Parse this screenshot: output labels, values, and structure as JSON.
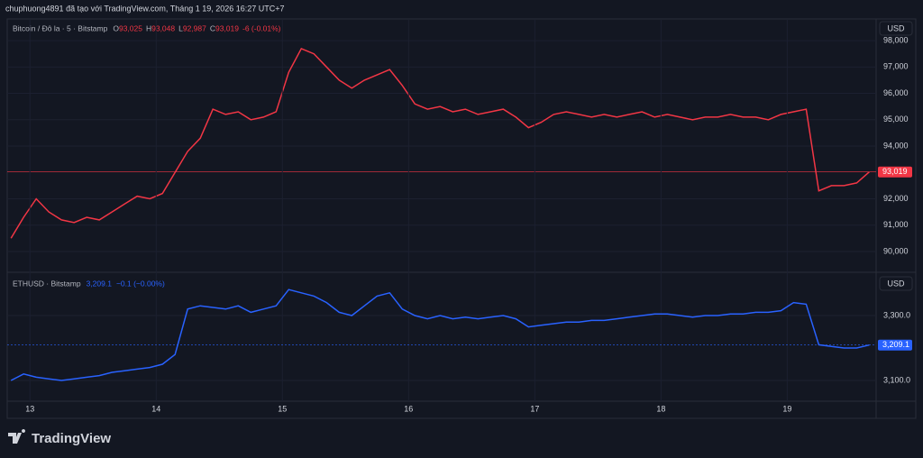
{
  "header": "chuphuong4891 đã tạo với TradingView.com, Tháng 1 19, 2026 16:27 UTC+7",
  "brand": "TradingView",
  "chart_data": [
    {
      "type": "line",
      "title": "Bitcoin / Đô la · 5 · Bitstamp",
      "currency": "USD",
      "ohlc": [
        {
          "label": "O",
          "value": "93,025"
        },
        {
          "label": "H",
          "value": "93,048"
        },
        {
          "label": "L",
          "value": "92,987"
        },
        {
          "label": "C",
          "value": "93,019"
        }
      ],
      "change": "-6 (-0.01%)",
      "last_label": "93,019",
      "price_line_color": "#f23645",
      "x": [
        12.85,
        12.95,
        13.05,
        13.15,
        13.25,
        13.35,
        13.45,
        13.55,
        13.65,
        13.75,
        13.85,
        13.95,
        14.05,
        14.15,
        14.25,
        14.35,
        14.45,
        14.55,
        14.65,
        14.75,
        14.85,
        14.95,
        15.05,
        15.15,
        15.25,
        15.35,
        15.45,
        15.55,
        15.65,
        15.75,
        15.85,
        15.95,
        16.05,
        16.15,
        16.25,
        16.35,
        16.45,
        16.55,
        16.65,
        16.75,
        16.85,
        16.95,
        17.05,
        17.15,
        17.25,
        17.35,
        17.45,
        17.55,
        17.65,
        17.75,
        17.85,
        17.95,
        18.05,
        18.15,
        18.25,
        18.35,
        18.45,
        18.55,
        18.65,
        18.75,
        18.85,
        18.95,
        19.05,
        19.15,
        19.25,
        19.35,
        19.45,
        19.55,
        19.65
      ],
      "series": [
        {
          "name": "Bitcoin / Đô la",
          "color": "#f23645",
          "values": [
            90500,
            91300,
            92000,
            91500,
            91200,
            91100,
            91300,
            91200,
            91500,
            91800,
            92100,
            92000,
            92200,
            93000,
            93800,
            94300,
            95400,
            95200,
            95300,
            95000,
            95100,
            95300,
            96800,
            97700,
            97500,
            97000,
            96500,
            96200,
            96500,
            96700,
            96900,
            96300,
            95600,
            95400,
            95500,
            95300,
            95400,
            95200,
            95300,
            95400,
            95100,
            94700,
            94900,
            95200,
            95300,
            95200,
            95100,
            95200,
            95100,
            95200,
            95300,
            95100,
            95200,
            95100,
            95000,
            95100,
            95100,
            95200,
            95100,
            95100,
            95000,
            95200,
            95300,
            95400,
            92300,
            92500,
            92500,
            92600,
            93019
          ]
        }
      ],
      "xlim": [
        12.82,
        19.69
      ],
      "ylim": [
        89280,
        98790
      ],
      "yticks": [
        {
          "value": 90000,
          "label": "90,000"
        },
        {
          "value": 91000,
          "label": "91,000"
        },
        {
          "value": 92000,
          "label": "92,000"
        },
        {
          "value": 94000,
          "label": "94,000"
        },
        {
          "value": 95000,
          "label": "95,000"
        },
        {
          "value": 96000,
          "label": "96,000"
        },
        {
          "value": 97000,
          "label": "97,000"
        },
        {
          "value": 98000,
          "label": "98,000"
        }
      ],
      "grid": true
    },
    {
      "type": "line",
      "title": "ETHUSD · Bitstamp",
      "currency": "USD",
      "last_label": "3,209.1",
      "change": "−0.1 (−0.00%)",
      "price_line_color": "#2962ff",
      "x": [
        12.85,
        12.95,
        13.05,
        13.15,
        13.25,
        13.35,
        13.45,
        13.55,
        13.65,
        13.75,
        13.85,
        13.95,
        14.05,
        14.15,
        14.25,
        14.35,
        14.45,
        14.55,
        14.65,
        14.75,
        14.85,
        14.95,
        15.05,
        15.15,
        15.25,
        15.35,
        15.45,
        15.55,
        15.65,
        15.75,
        15.85,
        15.95,
        16.05,
        16.15,
        16.25,
        16.35,
        16.45,
        16.55,
        16.65,
        16.75,
        16.85,
        16.95,
        17.05,
        17.15,
        17.25,
        17.35,
        17.45,
        17.55,
        17.65,
        17.75,
        17.85,
        17.95,
        18.05,
        18.15,
        18.25,
        18.35,
        18.45,
        18.55,
        18.65,
        18.75,
        18.85,
        18.95,
        19.05,
        19.15,
        19.25,
        19.35,
        19.45,
        19.55,
        19.65
      ],
      "series": [
        {
          "name": "ETHUSD",
          "color": "#2962ff",
          "values": [
            3100,
            3120,
            3110,
            3105,
            3100,
            3105,
            3110,
            3115,
            3125,
            3130,
            3135,
            3140,
            3150,
            3180,
            3320,
            3330,
            3325,
            3320,
            3330,
            3310,
            3320,
            3330,
            3380,
            3370,
            3360,
            3340,
            3310,
            3300,
            3330,
            3360,
            3370,
            3320,
            3300,
            3290,
            3300,
            3290,
            3295,
            3290,
            3295,
            3300,
            3290,
            3265,
            3270,
            3275,
            3280,
            3280,
            3285,
            3285,
            3290,
            3295,
            3300,
            3305,
            3305,
            3300,
            3295,
            3300,
            3300,
            3305,
            3305,
            3310,
            3310,
            3315,
            3340,
            3335,
            3210,
            3205,
            3200,
            3200,
            3209.1
          ]
        }
      ],
      "xlim": [
        12.82,
        19.69
      ],
      "ylim": [
        3036,
        3425
      ],
      "yticks": [
        {
          "value": 3100,
          "label": "3,100.0"
        },
        {
          "value": 3300,
          "label": "3,300.0"
        }
      ],
      "xticks": [
        13,
        14,
        15,
        16,
        17,
        18,
        19
      ],
      "grid": true
    }
  ]
}
